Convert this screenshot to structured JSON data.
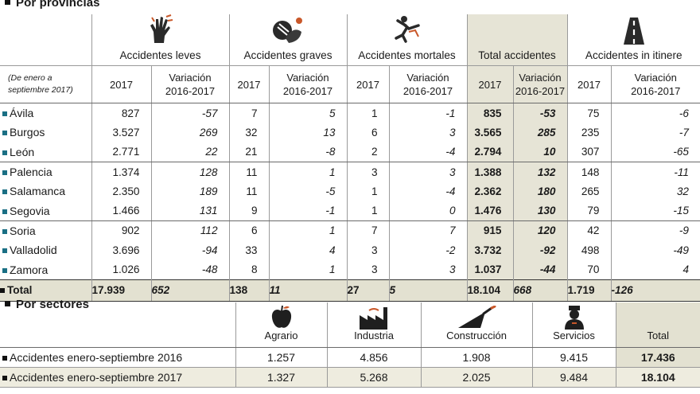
{
  "provinces_section": {
    "title": "Por provincias",
    "period_note": "(De enero a septiembre 2017)",
    "groups": [
      {
        "label": "Accidentes leves",
        "icon": "hand-icon"
      },
      {
        "label": "Accidentes graves",
        "icon": "injured-arm-icon"
      },
      {
        "label": "Accidentes mortales",
        "icon": "falling-person-icon"
      },
      {
        "label": "Total accidentes",
        "icon": ""
      },
      {
        "label": "Accidentes in itinere",
        "icon": "road-icon"
      }
    ],
    "col_year": "2017",
    "col_var_line1": "Variación",
    "col_var_line2": "2016-2017",
    "rows": [
      {
        "name": "Ávila",
        "values": [
          "827",
          "-57",
          "7",
          "5",
          "1",
          "-1",
          "835",
          "-53",
          "75",
          "-6"
        ]
      },
      {
        "name": "Burgos",
        "values": [
          "3.527",
          "269",
          "32",
          "13",
          "6",
          "3",
          "3.565",
          "285",
          "235",
          "-7"
        ]
      },
      {
        "name": "León",
        "values": [
          "2.771",
          "22",
          "21",
          "-8",
          "2",
          "-4",
          "2.794",
          "10",
          "307",
          "-65"
        ]
      },
      {
        "name": "Palencia",
        "values": [
          "1.374",
          "128",
          "11",
          "1",
          "3",
          "3",
          "1.388",
          "132",
          "148",
          "-11"
        ]
      },
      {
        "name": "Salamanca",
        "values": [
          "2.350",
          "189",
          "11",
          "-5",
          "1",
          "-4",
          "2.362",
          "180",
          "265",
          "32"
        ]
      },
      {
        "name": "Segovia",
        "values": [
          "1.466",
          "131",
          "9",
          "-1",
          "1",
          "0",
          "1.476",
          "130",
          "79",
          "-15"
        ]
      },
      {
        "name": "Soria",
        "values": [
          "902",
          "112",
          "6",
          "1",
          "7",
          "7",
          "915",
          "120",
          "42",
          "-9"
        ]
      },
      {
        "name": "Valladolid",
        "values": [
          "3.696",
          "-94",
          "33",
          "4",
          "3",
          "-2",
          "3.732",
          "-92",
          "498",
          "-49"
        ]
      },
      {
        "name": "Zamora",
        "values": [
          "1.026",
          "-48",
          "8",
          "1",
          "3",
          "3",
          "1.037",
          "-44",
          "70",
          "4"
        ]
      }
    ],
    "total": {
      "name": "Total",
      "values": [
        "17.939",
        "652",
        "138",
        "11",
        "27",
        "5",
        "18.104",
        "668",
        "1.719",
        "-126"
      ]
    }
  },
  "sectors_section": {
    "title": "Por sectores",
    "columns": [
      {
        "label": "Agrario",
        "icon": "apple-icon"
      },
      {
        "label": "Industria",
        "icon": "factory-icon"
      },
      {
        "label": "Construcción",
        "icon": "trowel-icon"
      },
      {
        "label": "Servicios",
        "icon": "waiter-icon"
      },
      {
        "label": "Total",
        "icon": ""
      }
    ],
    "rows": [
      {
        "name": "Accidentes enero-septiembre 2016",
        "values": [
          "1.257",
          "4.856",
          "1.908",
          "9.415",
          "17.436"
        ]
      },
      {
        "name": "Accidentes enero-septiembre 2017",
        "values": [
          "1.327",
          "5.268",
          "2.025",
          "9.484",
          "18.104"
        ]
      }
    ]
  },
  "colors": {
    "accent_square": "#1a6f84",
    "total_fill": "#e3e1d1"
  }
}
